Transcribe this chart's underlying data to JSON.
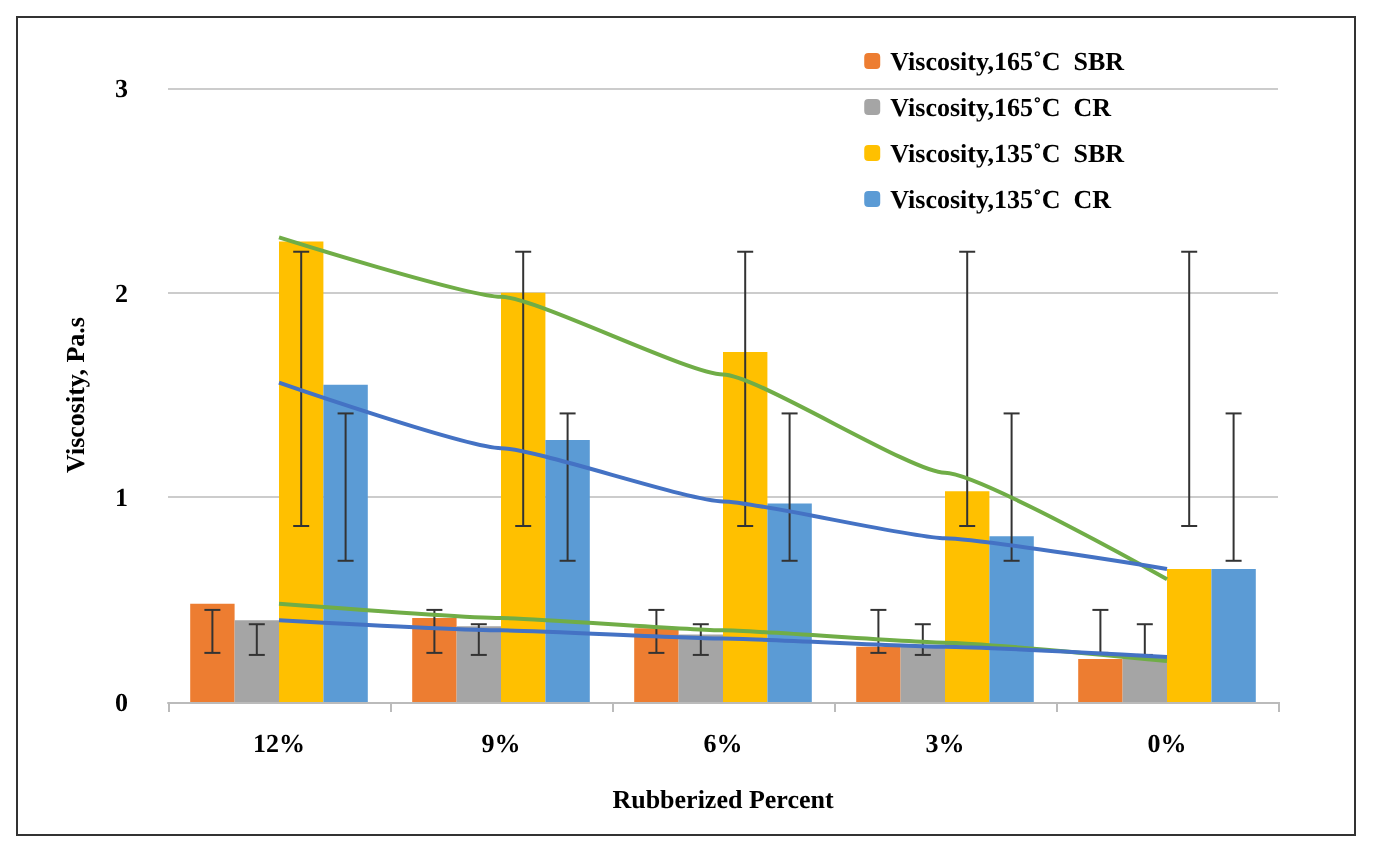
{
  "chart_data": {
    "type": "bar",
    "xlabel": "Rubberized Percent",
    "ylabel": "Viscosity, Pa.s",
    "categories": [
      "12%",
      "9%",
      "6%",
      "3%",
      "0%"
    ],
    "ylim": [
      0,
      3
    ],
    "yticks": [
      0,
      1,
      2,
      3
    ],
    "grid": "y",
    "legend": "top right",
    "series": [
      {
        "name": "Viscosity,165˚C  SBR",
        "color": "#ed7d31",
        "values": [
          0.48,
          0.41,
          0.36,
          0.27,
          0.21
        ],
        "errors": [
          [
            0.24,
            0.45
          ],
          [
            0.24,
            0.45
          ],
          [
            0.24,
            0.45
          ],
          [
            0.24,
            0.45
          ],
          [
            0.24,
            0.45
          ]
        ]
      },
      {
        "name": "Viscosity,165˚C  CR",
        "color": "#a5a5a5",
        "values": [
          0.4,
          0.37,
          0.33,
          0.28,
          0.22
        ],
        "errors": [
          [
            0.23,
            0.38
          ],
          [
            0.23,
            0.38
          ],
          [
            0.23,
            0.38
          ],
          [
            0.23,
            0.38
          ],
          [
            0.23,
            0.38
          ]
        ]
      },
      {
        "name": "Viscosity,135˚C  SBR",
        "color": "#ffc000",
        "values": [
          2.25,
          2.0,
          1.71,
          1.03,
          0.65
        ],
        "errors": [
          [
            0.86,
            2.2
          ],
          [
            0.86,
            2.2
          ],
          [
            0.86,
            2.2
          ],
          [
            0.86,
            2.2
          ],
          [
            0.86,
            2.2
          ]
        ]
      },
      {
        "name": "Viscosity,135˚C  CR",
        "color": "#5b9bd5",
        "values": [
          1.55,
          1.28,
          0.97,
          0.81,
          0.65
        ],
        "errors": [
          [
            0.69,
            1.41
          ],
          [
            0.69,
            1.41
          ],
          [
            0.69,
            1.41
          ],
          [
            0.69,
            1.41
          ],
          [
            0.69,
            1.41
          ]
        ]
      },
      {
        "type": "line",
        "color": "#70ad47",
        "values": [
          2.27,
          1.98,
          1.6,
          1.12,
          0.6
        ]
      },
      {
        "type": "line",
        "color": "#4472c4",
        "values": [
          1.56,
          1.24,
          0.98,
          0.8,
          0.65
        ]
      },
      {
        "type": "line",
        "color": "#70ad47",
        "values": [
          0.48,
          0.41,
          0.35,
          0.29,
          0.2
        ]
      },
      {
        "type": "line",
        "color": "#4472c4",
        "values": [
          0.4,
          0.35,
          0.31,
          0.27,
          0.22
        ]
      }
    ]
  }
}
